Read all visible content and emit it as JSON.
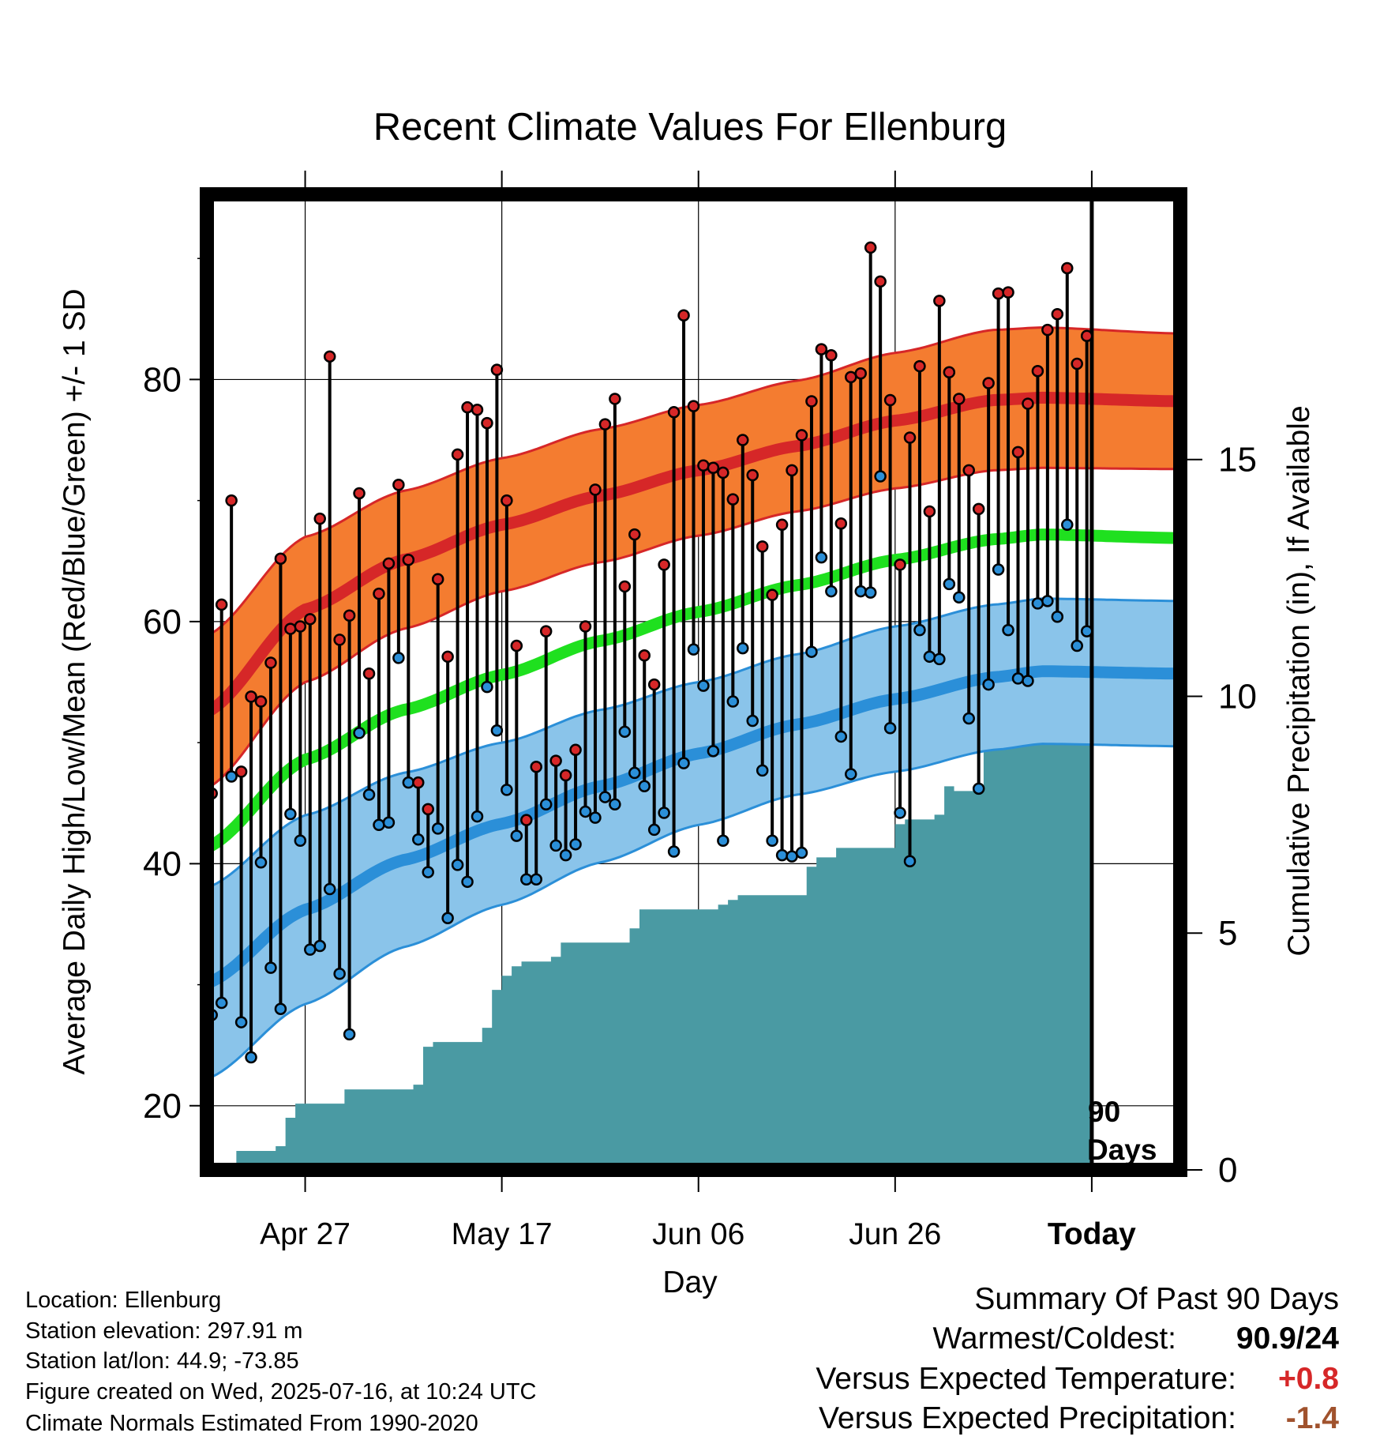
{
  "colors": {
    "high": "#d62728",
    "low": "#2b8fd8",
    "band_high": "#f47c30",
    "band_low": "#8ac4ea",
    "mean": "#1fe01f",
    "precip": "#4a9aa3",
    "positive": "#d62728",
    "negative": "#a0522d"
  },
  "chart_data": {
    "type": "line",
    "title": "Recent Climate Values For Ellenburg",
    "xlabel": "Day",
    "ylabel": "Average Daily High/Low/Mean (Red/Blue/Green) +/- 1 SD",
    "y2label": "Cumulative Precipitation (in), If Available",
    "x_ticks": [
      "Apr 27",
      "May 17",
      "Jun 06",
      "Jun 26",
      "Today"
    ],
    "ylim": [
      14.7,
      95.3
    ],
    "yticks": [
      20,
      40,
      60,
      80
    ],
    "y2lim": [
      0,
      20.6
    ],
    "y2ticks": [
      0,
      5,
      10,
      15
    ],
    "today_label": "90 Days",
    "x_range": [
      "2025-04-17",
      "2025-07-25"
    ],
    "grid": true,
    "series": [
      {
        "name": "Daily High",
        "x": [
          "2025-04-17",
          "2025-04-18",
          "2025-04-19",
          "2025-04-20",
          "2025-04-21",
          "2025-04-22",
          "2025-04-23",
          "2025-04-24",
          "2025-04-25",
          "2025-04-26",
          "2025-04-27",
          "2025-04-28",
          "2025-04-29",
          "2025-04-30",
          "2025-05-01",
          "2025-05-02",
          "2025-05-03",
          "2025-05-04",
          "2025-05-05",
          "2025-05-06",
          "2025-05-07",
          "2025-05-08",
          "2025-05-09",
          "2025-05-10",
          "2025-05-11",
          "2025-05-12",
          "2025-05-13",
          "2025-05-14",
          "2025-05-15",
          "2025-05-16",
          "2025-05-17",
          "2025-05-18",
          "2025-05-19",
          "2025-05-20",
          "2025-05-21",
          "2025-05-22",
          "2025-05-23",
          "2025-05-24",
          "2025-05-25",
          "2025-05-26",
          "2025-05-27",
          "2025-05-28",
          "2025-05-29",
          "2025-05-30",
          "2025-05-31",
          "2025-06-01",
          "2025-06-02",
          "2025-06-03",
          "2025-06-04",
          "2025-06-05",
          "2025-06-06",
          "2025-06-07",
          "2025-06-08",
          "2025-06-09",
          "2025-06-10",
          "2025-06-11",
          "2025-06-12",
          "2025-06-13",
          "2025-06-14",
          "2025-06-15",
          "2025-06-16",
          "2025-06-17",
          "2025-06-18",
          "2025-06-19",
          "2025-06-20",
          "2025-06-21",
          "2025-06-22",
          "2025-06-23",
          "2025-06-24",
          "2025-06-25",
          "2025-06-26",
          "2025-06-27",
          "2025-06-28",
          "2025-06-29",
          "2025-06-30",
          "2025-07-01",
          "2025-07-02",
          "2025-07-03",
          "2025-07-04",
          "2025-07-05",
          "2025-07-06",
          "2025-07-07",
          "2025-07-08",
          "2025-07-09",
          "2025-07-10",
          "2025-07-11",
          "2025-07-12",
          "2025-07-13",
          "2025-07-14",
          "2025-07-15"
        ],
        "values": [
          45.8,
          61.4,
          70,
          47.6,
          53.8,
          53.4,
          56.6,
          65.2,
          59.4,
          59.6,
          60.2,
          68.5,
          81.9,
          58.5,
          60.5,
          70.6,
          55.7,
          62.3,
          64.8,
          71.3,
          65.1,
          46.7,
          44.5,
          63.5,
          57.1,
          73.8,
          77.7,
          77.5,
          76.4,
          80.8,
          70,
          58,
          43.6,
          48,
          59.2,
          48.5,
          47.3,
          49.4,
          59.6,
          70.9,
          76.3,
          78.4,
          62.9,
          67.2,
          57.2,
          54.8,
          64.7,
          77.3,
          85.3,
          77.8,
          72.9,
          72.7,
          72.3,
          70.1,
          75,
          72.1,
          66.2,
          62.2,
          68,
          72.5,
          75.4,
          78.2,
          82.5,
          82,
          68.1,
          80.2,
          80.5,
          90.9,
          88.1,
          78.3,
          64.7,
          75.2,
          81.1,
          69.1,
          86.5,
          80.6,
          78.4,
          72.5,
          69.3,
          79.7,
          87.1,
          87.2,
          74,
          78,
          80.7,
          84.1,
          85.4,
          89.2,
          81.3,
          83.6
        ]
      },
      {
        "name": "Daily Low",
        "x": [
          "2025-04-17",
          "2025-04-18",
          "2025-04-19",
          "2025-04-20",
          "2025-04-21",
          "2025-04-22",
          "2025-04-23",
          "2025-04-24",
          "2025-04-25",
          "2025-04-26",
          "2025-04-27",
          "2025-04-28",
          "2025-04-29",
          "2025-04-30",
          "2025-05-01",
          "2025-05-02",
          "2025-05-03",
          "2025-05-04",
          "2025-05-05",
          "2025-05-06",
          "2025-05-07",
          "2025-05-08",
          "2025-05-09",
          "2025-05-10",
          "2025-05-11",
          "2025-05-12",
          "2025-05-13",
          "2025-05-14",
          "2025-05-15",
          "2025-05-16",
          "2025-05-17",
          "2025-05-18",
          "2025-05-19",
          "2025-05-20",
          "2025-05-21",
          "2025-05-22",
          "2025-05-23",
          "2025-05-24",
          "2025-05-25",
          "2025-05-26",
          "2025-05-27",
          "2025-05-28",
          "2025-05-29",
          "2025-05-30",
          "2025-05-31",
          "2025-06-01",
          "2025-06-02",
          "2025-06-03",
          "2025-06-04",
          "2025-06-05",
          "2025-06-06",
          "2025-06-07",
          "2025-06-08",
          "2025-06-09",
          "2025-06-10",
          "2025-06-11",
          "2025-06-12",
          "2025-06-13",
          "2025-06-14",
          "2025-06-15",
          "2025-06-16",
          "2025-06-17",
          "2025-06-18",
          "2025-06-19",
          "2025-06-20",
          "2025-06-21",
          "2025-06-22",
          "2025-06-23",
          "2025-06-24",
          "2025-06-25",
          "2025-06-26",
          "2025-06-27",
          "2025-06-28",
          "2025-06-29",
          "2025-06-30",
          "2025-07-01",
          "2025-07-02",
          "2025-07-03",
          "2025-07-04",
          "2025-07-05",
          "2025-07-06",
          "2025-07-07",
          "2025-07-08",
          "2025-07-09",
          "2025-07-10",
          "2025-07-11",
          "2025-07-12",
          "2025-07-13",
          "2025-07-14",
          "2025-07-15"
        ],
        "values": [
          27.5,
          28.5,
          47.2,
          26.9,
          24,
          40.1,
          31.4,
          28,
          44.1,
          41.9,
          32.9,
          33.2,
          37.9,
          30.9,
          25.9,
          50.8,
          45.7,
          43.2,
          43.4,
          57,
          46.7,
          42,
          39.3,
          42.9,
          35.5,
          39.9,
          38.5,
          43.9,
          54.6,
          51,
          46.1,
          42.3,
          38.7,
          38.7,
          44.9,
          41.5,
          40.7,
          41.6,
          44.3,
          43.8,
          45.5,
          44.9,
          50.9,
          47.5,
          46.4,
          42.8,
          44.2,
          41,
          48.3,
          57.7,
          54.7,
          49.3,
          41.9,
          53.4,
          57.8,
          51.8,
          47.7,
          41.9,
          40.7,
          40.6,
          40.9,
          57.5,
          65.3,
          62.5,
          50.5,
          47.4,
          62.5,
          62.4,
          72,
          51.2,
          44.2,
          40.2,
          59.3,
          57.1,
          56.9,
          63.1,
          62,
          52,
          46.2,
          54.8,
          64.3,
          59.3,
          55.3,
          55.1,
          61.5,
          61.7,
          60.4,
          68,
          58,
          59.2
        ]
      },
      {
        "name": "Normal High",
        "x": [
          "2025-04-17",
          "2025-04-27",
          "2025-05-07",
          "2025-05-17",
          "2025-05-27",
          "2025-06-06",
          "2025-06-16",
          "2025-06-26",
          "2025-07-06",
          "2025-07-11",
          "2025-07-25"
        ],
        "values": [
          52.5,
          61,
          65.1,
          68,
          70.4,
          72.5,
          74.5,
          76.6,
          78.3,
          78.5,
          78.2
        ],
        "sd": [
          6.3,
          6,
          5.7,
          5.5,
          5.5,
          5.4,
          5.4,
          5.6,
          5.8,
          5.8,
          5.6
        ]
      },
      {
        "name": "Normal Low",
        "x": [
          "2025-04-17",
          "2025-04-27",
          "2025-05-07",
          "2025-05-17",
          "2025-05-27",
          "2025-06-06",
          "2025-06-16",
          "2025-06-26",
          "2025-07-06",
          "2025-07-11",
          "2025-07-25"
        ],
        "values": [
          30.1,
          36.2,
          40.3,
          43.3,
          46.4,
          49.1,
          51.5,
          53.6,
          55.4,
          55.9,
          55.7
        ],
        "sd": [
          7.9,
          7.8,
          7.2,
          6.7,
          6.3,
          5.9,
          5.8,
          6,
          6,
          6,
          6
        ]
      },
      {
        "name": "Normal Mean",
        "x": [
          "2025-04-17",
          "2025-04-27",
          "2025-05-07",
          "2025-05-17",
          "2025-05-27",
          "2025-06-06",
          "2025-06-16",
          "2025-06-26",
          "2025-07-06",
          "2025-07-11",
          "2025-07-25"
        ],
        "values": [
          41.3,
          48.6,
          52.7,
          55.6,
          58.4,
          60.8,
          63,
          65.1,
          66.8,
          67.2,
          66.9
        ]
      },
      {
        "name": "Cumulative Precipitation",
        "axis": "y2",
        "x": [
          "2025-04-17",
          "2025-04-20",
          "2025-04-21",
          "2025-04-24",
          "2025-04-25",
          "2025-04-26",
          "2025-04-27",
          "2025-05-01",
          "2025-05-03",
          "2025-05-08",
          "2025-05-09",
          "2025-05-10",
          "2025-05-14",
          "2025-05-15",
          "2025-05-16",
          "2025-05-17",
          "2025-05-18",
          "2025-05-19",
          "2025-05-22",
          "2025-05-23",
          "2025-05-25",
          "2025-05-29",
          "2025-05-30",
          "2025-05-31",
          "2025-06-01",
          "2025-06-08",
          "2025-06-09",
          "2025-06-10",
          "2025-06-11",
          "2025-06-16",
          "2025-06-17",
          "2025-06-18",
          "2025-06-20",
          "2025-06-22",
          "2025-06-26",
          "2025-06-27",
          "2025-06-30",
          "2025-07-01",
          "2025-07-02",
          "2025-07-05",
          "2025-07-06",
          "2025-07-07",
          "2025-07-15"
        ],
        "values": [
          0,
          0.4,
          0.4,
          0.5,
          1.1,
          1.4,
          1.4,
          1.7,
          1.7,
          1.8,
          2.6,
          2.7,
          2.7,
          3,
          3.8,
          4.1,
          4.3,
          4.4,
          4.5,
          4.8,
          4.8,
          4.8,
          5.1,
          5.5,
          5.5,
          5.6,
          5.7,
          5.8,
          5.8,
          5.8,
          6.4,
          6.6,
          6.8,
          6.8,
          7.3,
          7.4,
          7.5,
          8.1,
          8,
          9.5,
          9.5,
          10.5,
          10.5
        ]
      }
    ]
  },
  "info": {
    "location": "Location: Ellenburg",
    "elevation": "Station elevation: 297.91 m",
    "latlon": "Station lat/lon: 44.9; -73.85",
    "created": "Figure created on Wed, 2025-07-16, at 10:24 UTC",
    "normals": "Climate Normals Estimated From 1990-2020"
  },
  "summary": {
    "heading": "Summary Of Past 90 Days",
    "warm_cold_label": "Warmest/Coldest:",
    "warm_cold_value": "90.9/24",
    "temp_label": "Versus Expected Temperature:",
    "temp_value": "+0.8",
    "precip_label": "Versus Expected Precipitation:",
    "precip_value": "-1.4"
  }
}
